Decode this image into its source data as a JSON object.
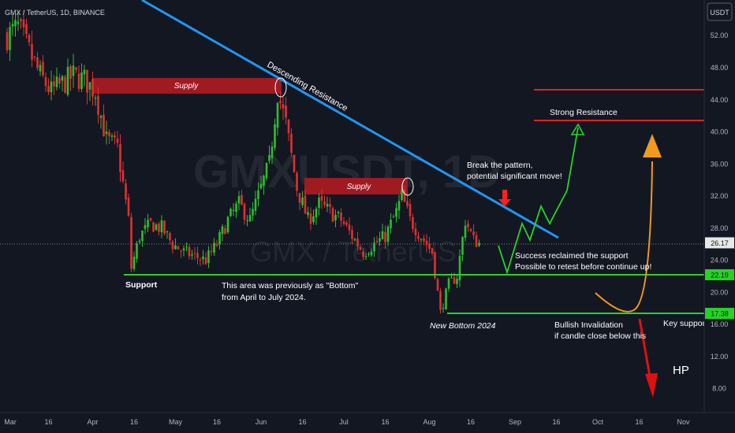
{
  "header": {
    "symbol_line": "GMX / TetherUS, 1D, BINANCE",
    "currency_button": "USDT"
  },
  "watermark": {
    "main": "GMXUSDT, 1D",
    "sub": "GMX / TetherUS"
  },
  "annotations": {
    "supply_1": "Supply",
    "supply_2": "Supply",
    "descending_resistance": "Descending Resistance",
    "support": "Support",
    "bottom_note_1": "This area was previously as \"Bottom\"",
    "bottom_note_2": "from April to July 2024.",
    "new_bottom": "New Bottom 2024",
    "break_note_1": "Break the pattern,",
    "break_note_2": "potential significant move!",
    "strong_resistance": "Strong Resistance",
    "success_note_1": "Success reclaimed the support",
    "success_note_2": "Possible to retest before continue up!",
    "invalidation_1": "Bullish Invalidation",
    "invalidation_2": "if candle close below this",
    "key_support": "Key support",
    "hp": "HP"
  },
  "colors": {
    "background": "#131722",
    "bull": "#26a69a",
    "candle_up": "#2ebd2e",
    "candle_down": "#e03030",
    "support_line": "#27d227",
    "resistance_line": "#e02020",
    "trendline": "#2196f3",
    "supply_zone": "#a01a22",
    "projection_green": "#29d229",
    "arc_orange": "#f29a1c",
    "arrow_red": "#e01010",
    "price_tag": "#e8e8e8"
  },
  "chart_data": {
    "type": "candlestick",
    "x_ticks": [
      "Mar",
      "16",
      "Apr",
      "16",
      "May",
      "16",
      "Jun",
      "16",
      "Jul",
      "16",
      "Aug",
      "16",
      "Sep",
      "16",
      "Oct",
      "16",
      "Nov"
    ],
    "y_ticks": [
      "52.00",
      "48.00",
      "44.00",
      "40.00",
      "36.00",
      "32.00",
      "28.00",
      "24.00",
      "20.00",
      "16.00",
      "12.00",
      "8.00"
    ],
    "price_tags": [
      {
        "value": "26.17",
        "role": "current"
      },
      {
        "value": "22.19",
        "role": "support"
      },
      {
        "value": "17.38",
        "role": "key support"
      }
    ],
    "levels": {
      "support": 22.19,
      "key_support": 17.38,
      "strong_resistance_low": 41.3,
      "strong_resistance_high": 45.1,
      "supply_1": [
        45.3,
        47.3
      ],
      "supply_2": [
        31.6,
        33.7
      ]
    },
    "ylim": [
      6,
      55
    ],
    "close_path": [
      {
        "date": "2024-03-01",
        "close": 52
      },
      {
        "date": "2024-03-05",
        "close": 53
      },
      {
        "date": "2024-03-09",
        "close": 50
      },
      {
        "date": "2024-03-13",
        "close": 47
      },
      {
        "date": "2024-03-17",
        "close": 45
      },
      {
        "date": "2024-03-21",
        "close": 46
      },
      {
        "date": "2024-03-25",
        "close": 47
      },
      {
        "date": "2024-03-29",
        "close": 46.5
      },
      {
        "date": "2024-04-02",
        "close": 45
      },
      {
        "date": "2024-04-06",
        "close": 39
      },
      {
        "date": "2024-04-10",
        "close": 38
      },
      {
        "date": "2024-04-14",
        "close": 29
      },
      {
        "date": "2024-04-15",
        "close": 23
      },
      {
        "date": "2024-04-18",
        "close": 27
      },
      {
        "date": "2024-04-22",
        "close": 28.5
      },
      {
        "date": "2024-04-26",
        "close": 28
      },
      {
        "date": "2024-04-30",
        "close": 26
      },
      {
        "date": "2024-05-04",
        "close": 25
      },
      {
        "date": "2024-05-08",
        "close": 24.5
      },
      {
        "date": "2024-05-12",
        "close": 24
      },
      {
        "date": "2024-05-16",
        "close": 26
      },
      {
        "date": "2024-05-20",
        "close": 29
      },
      {
        "date": "2024-05-24",
        "close": 31
      },
      {
        "date": "2024-05-28",
        "close": 29
      },
      {
        "date": "2024-06-01",
        "close": 33
      },
      {
        "date": "2024-06-04",
        "close": 36
      },
      {
        "date": "2024-06-07",
        "close": 45
      },
      {
        "date": "2024-06-10",
        "close": 41
      },
      {
        "date": "2024-06-14",
        "close": 33
      },
      {
        "date": "2024-06-18",
        "close": 29
      },
      {
        "date": "2024-06-22",
        "close": 31
      },
      {
        "date": "2024-06-26",
        "close": 30
      },
      {
        "date": "2024-06-30",
        "close": 29
      },
      {
        "date": "2024-07-04",
        "close": 27
      },
      {
        "date": "2024-07-08",
        "close": 25
      },
      {
        "date": "2024-07-12",
        "close": 26
      },
      {
        "date": "2024-07-16",
        "close": 27
      },
      {
        "date": "2024-07-20",
        "close": 30
      },
      {
        "date": "2024-07-22",
        "close": 32
      },
      {
        "date": "2024-07-25",
        "close": 29
      },
      {
        "date": "2024-07-29",
        "close": 27
      },
      {
        "date": "2024-08-02",
        "close": 25
      },
      {
        "date": "2024-08-05",
        "close": 17.5
      },
      {
        "date": "2024-08-08",
        "close": 21
      },
      {
        "date": "2024-08-11",
        "close": 22
      },
      {
        "date": "2024-08-14",
        "close": 29
      },
      {
        "date": "2024-08-17",
        "close": 26.5
      },
      {
        "date": "2024-08-19",
        "close": 26.17
      }
    ]
  }
}
